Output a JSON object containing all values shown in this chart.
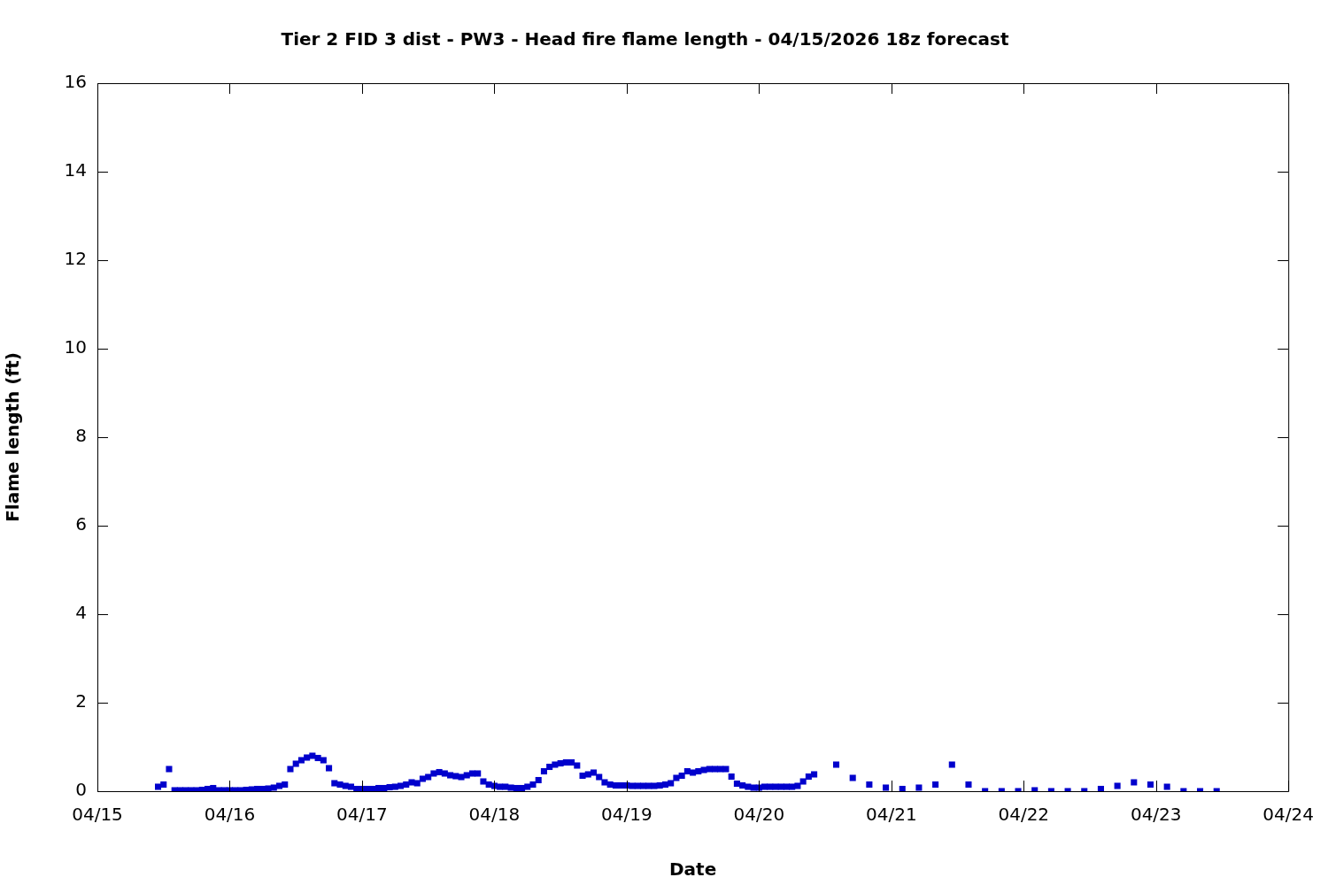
{
  "chart_data": {
    "type": "scatter",
    "title": "Tier 2 FID 3 dist - PW3 - Head fire flame length - 04/15/2026 18z forecast",
    "xlabel": "Date",
    "ylabel": "Flame length (ft)",
    "x": [
      "2026-04-15T11:00",
      "2026-04-15T12:00",
      "2026-04-15T13:00",
      "2026-04-15T14:00",
      "2026-04-15T15:00",
      "2026-04-15T16:00",
      "2026-04-15T17:00",
      "2026-04-15T18:00",
      "2026-04-15T19:00",
      "2026-04-15T20:00",
      "2026-04-15T21:00",
      "2026-04-15T22:00",
      "2026-04-15T23:00",
      "2026-04-16T00:00",
      "2026-04-16T01:00",
      "2026-04-16T02:00",
      "2026-04-16T03:00",
      "2026-04-16T04:00",
      "2026-04-16T05:00",
      "2026-04-16T06:00",
      "2026-04-16T07:00",
      "2026-04-16T08:00",
      "2026-04-16T09:00",
      "2026-04-16T10:00",
      "2026-04-16T11:00",
      "2026-04-16T12:00",
      "2026-04-16T13:00",
      "2026-04-16T14:00",
      "2026-04-16T15:00",
      "2026-04-16T16:00",
      "2026-04-16T17:00",
      "2026-04-16T18:00",
      "2026-04-16T19:00",
      "2026-04-16T20:00",
      "2026-04-16T21:00",
      "2026-04-16T22:00",
      "2026-04-16T23:00",
      "2026-04-17T00:00",
      "2026-04-17T01:00",
      "2026-04-17T02:00",
      "2026-04-17T03:00",
      "2026-04-17T04:00",
      "2026-04-17T05:00",
      "2026-04-17T06:00",
      "2026-04-17T07:00",
      "2026-04-17T08:00",
      "2026-04-17T09:00",
      "2026-04-17T10:00",
      "2026-04-17T11:00",
      "2026-04-17T12:00",
      "2026-04-17T13:00",
      "2026-04-17T14:00",
      "2026-04-17T15:00",
      "2026-04-17T16:00",
      "2026-04-17T17:00",
      "2026-04-17T18:00",
      "2026-04-17T19:00",
      "2026-04-17T20:00",
      "2026-04-17T21:00",
      "2026-04-17T22:00",
      "2026-04-17T23:00",
      "2026-04-18T00:00",
      "2026-04-18T01:00",
      "2026-04-18T02:00",
      "2026-04-18T03:00",
      "2026-04-18T04:00",
      "2026-04-18T05:00",
      "2026-04-18T06:00",
      "2026-04-18T07:00",
      "2026-04-18T08:00",
      "2026-04-18T09:00",
      "2026-04-18T10:00",
      "2026-04-18T11:00",
      "2026-04-18T12:00",
      "2026-04-18T13:00",
      "2026-04-18T14:00",
      "2026-04-18T15:00",
      "2026-04-18T16:00",
      "2026-04-18T17:00",
      "2026-04-18T18:00",
      "2026-04-18T19:00",
      "2026-04-18T20:00",
      "2026-04-18T21:00",
      "2026-04-18T22:00",
      "2026-04-18T23:00",
      "2026-04-19T00:00",
      "2026-04-19T01:00",
      "2026-04-19T02:00",
      "2026-04-19T03:00",
      "2026-04-19T04:00",
      "2026-04-19T05:00",
      "2026-04-19T06:00",
      "2026-04-19T07:00",
      "2026-04-19T08:00",
      "2026-04-19T09:00",
      "2026-04-19T10:00",
      "2026-04-19T11:00",
      "2026-04-19T12:00",
      "2026-04-19T13:00",
      "2026-04-19T14:00",
      "2026-04-19T15:00",
      "2026-04-19T16:00",
      "2026-04-19T17:00",
      "2026-04-19T18:00",
      "2026-04-19T19:00",
      "2026-04-19T20:00",
      "2026-04-19T21:00",
      "2026-04-19T22:00",
      "2026-04-19T23:00",
      "2026-04-20T00:00",
      "2026-04-20T01:00",
      "2026-04-20T02:00",
      "2026-04-20T03:00",
      "2026-04-20T04:00",
      "2026-04-20T05:00",
      "2026-04-20T06:00",
      "2026-04-20T07:00",
      "2026-04-20T08:00",
      "2026-04-20T09:00",
      "2026-04-20T10:00",
      "2026-04-20T14:00",
      "2026-04-20T17:00",
      "2026-04-20T20:00",
      "2026-04-20T23:00",
      "2026-04-21T02:00",
      "2026-04-21T05:00",
      "2026-04-21T08:00",
      "2026-04-21T11:00",
      "2026-04-21T14:00",
      "2026-04-21T17:00",
      "2026-04-21T20:00",
      "2026-04-21T23:00",
      "2026-04-22T02:00",
      "2026-04-22T05:00",
      "2026-04-22T08:00",
      "2026-04-22T11:00",
      "2026-04-22T14:00",
      "2026-04-22T17:00",
      "2026-04-22T20:00",
      "2026-04-22T23:00",
      "2026-04-23T02:00",
      "2026-04-23T05:00",
      "2026-04-23T08:00",
      "2026-04-23T11:00"
    ],
    "series": [
      {
        "color": "#0000cc",
        "values": [
          0.1,
          0.15,
          0.5,
          0.02,
          0.02,
          0.02,
          0.02,
          0.02,
          0.03,
          0.05,
          0.07,
          0.02,
          0.02,
          0.02,
          0.02,
          0.02,
          0.03,
          0.04,
          0.05,
          0.05,
          0.06,
          0.08,
          0.12,
          0.15,
          0.5,
          0.62,
          0.7,
          0.76,
          0.8,
          0.75,
          0.7,
          0.52,
          0.18,
          0.15,
          0.12,
          0.1,
          0.05,
          0.05,
          0.05,
          0.05,
          0.07,
          0.07,
          0.09,
          0.1,
          0.12,
          0.15,
          0.2,
          0.18,
          0.28,
          0.32,
          0.4,
          0.43,
          0.4,
          0.36,
          0.34,
          0.32,
          0.36,
          0.4,
          0.4,
          0.22,
          0.15,
          0.12,
          0.1,
          0.1,
          0.08,
          0.07,
          0.07,
          0.1,
          0.15,
          0.25,
          0.45,
          0.55,
          0.6,
          0.63,
          0.65,
          0.65,
          0.58,
          0.35,
          0.38,
          0.42,
          0.32,
          0.2,
          0.15,
          0.13,
          0.13,
          0.13,
          0.12,
          0.12,
          0.12,
          0.12,
          0.12,
          0.13,
          0.15,
          0.18,
          0.3,
          0.35,
          0.45,
          0.42,
          0.45,
          0.48,
          0.5,
          0.5,
          0.5,
          0.5,
          0.33,
          0.17,
          0.13,
          0.1,
          0.08,
          0.08,
          0.1,
          0.1,
          0.1,
          0.1,
          0.1,
          0.1,
          0.12,
          0.22,
          0.33,
          0.38,
          0.6,
          0.3,
          0.15,
          0.08,
          0.05,
          0.08,
          0.15,
          0.6,
          0.15,
          0,
          0,
          0,
          0.02,
          0,
          0,
          0,
          0.05,
          0.12,
          0.2,
          0.15,
          0.1,
          0,
          0,
          0
        ]
      }
    ],
    "xlim": [
      "2026-04-15",
      "2026-04-24"
    ],
    "xticks": [
      {
        "value": "2026-04-15",
        "label": "04/15"
      },
      {
        "value": "2026-04-16",
        "label": "04/16"
      },
      {
        "value": "2026-04-17",
        "label": "04/17"
      },
      {
        "value": "2026-04-18",
        "label": "04/18"
      },
      {
        "value": "2026-04-19",
        "label": "04/19"
      },
      {
        "value": "2026-04-20",
        "label": "04/20"
      },
      {
        "value": "2026-04-21",
        "label": "04/21"
      },
      {
        "value": "2026-04-22",
        "label": "04/22"
      },
      {
        "value": "2026-04-23",
        "label": "04/23"
      },
      {
        "value": "2026-04-24",
        "label": "04/24"
      }
    ],
    "ylim": [
      0,
      16
    ],
    "yticks": [
      0,
      2,
      4,
      6,
      8,
      10,
      12,
      14,
      16
    ],
    "grid": false,
    "legend": false,
    "marker": "square"
  }
}
